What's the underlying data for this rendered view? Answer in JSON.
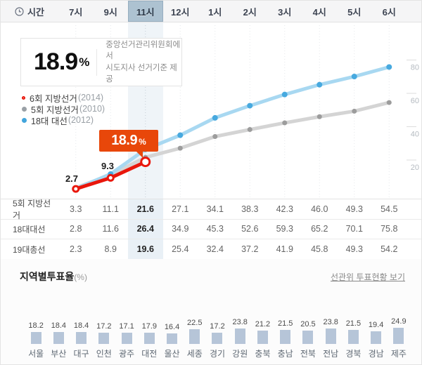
{
  "header": {
    "time_label": "시간",
    "hours": [
      "7시",
      "9시",
      "11시",
      "12시",
      "1시",
      "2시",
      "3시",
      "4시",
      "5시",
      "6시"
    ],
    "highlight_index": 2
  },
  "info_box": {
    "value": "18.9",
    "unit": "%",
    "desc1": "중앙선거관리위원회에서",
    "desc2": "시도지사 선거기준 제공"
  },
  "legend": [
    {
      "label": "6회 지방선거",
      "year": "(2014)",
      "marker": "ring-red"
    },
    {
      "label": "5회 지방선거",
      "year": "(2010)",
      "marker": "dot-gray"
    },
    {
      "label": "18대 대선",
      "year": "(2012)",
      "marker": "dot-blue"
    }
  ],
  "chart_data": {
    "type": "line",
    "x": [
      "7시",
      "9시",
      "11시",
      "12시",
      "1시",
      "2시",
      "3시",
      "4시",
      "5시",
      "6시"
    ],
    "series": [
      {
        "name": "6회 지방선거(2014)",
        "color_key": "red",
        "values": [
          2.7,
          9.3,
          18.9
        ]
      },
      {
        "name": "5회 지방선거(2010)",
        "color_key": "gray",
        "values": [
          3.3,
          11.1,
          21.6,
          27.1,
          34.1,
          38.3,
          42.3,
          46.0,
          49.3,
          54.5
        ]
      },
      {
        "name": "18대 대선(2012)",
        "color_key": "blue",
        "values": [
          2.8,
          11.6,
          26.4,
          34.9,
          45.3,
          52.6,
          59.3,
          65.2,
          70.1,
          75.8
        ]
      }
    ],
    "yticks": [
      20,
      40,
      60,
      80
    ],
    "ylim": [
      0,
      85
    ],
    "grid": "vertical-dashed",
    "legend_position": "top-left",
    "point_labels": [
      {
        "series": 0,
        "index": 0,
        "text": "2.7"
      },
      {
        "series": 0,
        "index": 1,
        "text": "9.3"
      }
    ],
    "callout": {
      "series": 0,
      "index": 2,
      "text": "18.9",
      "unit": "%"
    }
  },
  "table": {
    "highlight_index": 2,
    "rows": [
      {
        "label": "5회 지방선거",
        "values": [
          "3.3",
          "11.1",
          "21.6",
          "27.1",
          "34.1",
          "38.3",
          "42.3",
          "46.0",
          "49.3",
          "54.5"
        ]
      },
      {
        "label": "18대대선",
        "values": [
          "2.8",
          "11.6",
          "26.4",
          "34.9",
          "45.3",
          "52.6",
          "59.3",
          "65.2",
          "70.1",
          "75.8"
        ]
      },
      {
        "label": "19대총선",
        "values": [
          "2.3",
          "8.9",
          "19.6",
          "25.4",
          "32.4",
          "37.2",
          "41.9",
          "45.8",
          "49.3",
          "54.2"
        ]
      }
    ]
  },
  "regional": {
    "title": "지역별투표율",
    "title_suffix": "(%)",
    "link_label": "선관위 투표현황 보기",
    "chart_data": {
      "type": "bar",
      "categories": [
        "서울",
        "부산",
        "대구",
        "인천",
        "광주",
        "대전",
        "울산",
        "세종",
        "경기",
        "강원",
        "충북",
        "충남",
        "전북",
        "전남",
        "경북",
        "경남",
        "제주"
      ],
      "values": [
        18.2,
        18.4,
        18.4,
        17.2,
        17.1,
        17.9,
        16.4,
        22.5,
        17.2,
        23.8,
        21.2,
        21.5,
        20.5,
        23.8,
        21.5,
        19.4,
        24.9
      ]
    }
  },
  "colors": {
    "red_line": "#e9170c",
    "gray_line": "#d4d4d4",
    "gray_dot": "#9c9c9c",
    "blue_line": "#a8d8f1",
    "blue_dot": "#47a9df",
    "callout_bg": "#e8470a",
    "highlight_header_bg": "#adc2d1",
    "bar_fill": "#b6c5d8"
  }
}
